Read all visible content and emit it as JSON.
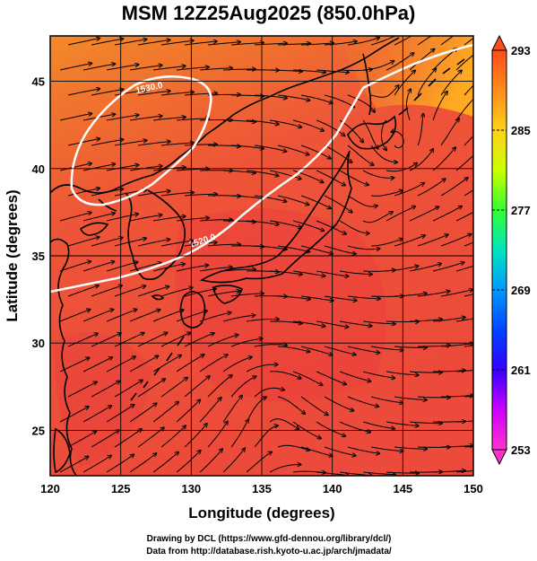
{
  "title": "MSM 12Z25Aug2025 (850.0hPa)",
  "axes": {
    "xlabel": "Longitude (degrees)",
    "ylabel": "Latitude  (degrees)",
    "xlim": [
      120,
      150
    ],
    "ylim": [
      22.4,
      47.6
    ],
    "xticks": [
      "120",
      "125",
      "130",
      "135",
      "140",
      "145",
      "150"
    ],
    "yticks": [
      "25",
      "30",
      "35",
      "40",
      "45"
    ],
    "grid": true
  },
  "colorbar": {
    "min": 253,
    "max": 293,
    "labels": [
      "293",
      "285",
      "277",
      "269",
      "261",
      "253"
    ],
    "colors": [
      "#ff33cc",
      "#cc00ff",
      "#3300ff",
      "#0066ff",
      "#00ccff",
      "#00e5a0",
      "#33ff33",
      "#ccff00",
      "#ffd21a",
      "#ff8c1a",
      "#ff4d1a"
    ],
    "extend": "both"
  },
  "contours": [
    {
      "label": "1530.0",
      "color": "#ffffff"
    },
    {
      "label": "1520.0",
      "color": "#ffffff"
    }
  ],
  "field_colors": {
    "warm": "#f24f3a",
    "warmer": "#ea3b3b",
    "north": "#f28a2a",
    "northeast": "#ffaa22"
  },
  "footer": {
    "line1": "Drawing by DCL (https://www.gfd-dennou.org/library/dcl/)",
    "line2": "Data from http://database.rish.kyoto-u.ac.jp/arch/jmadata/"
  }
}
